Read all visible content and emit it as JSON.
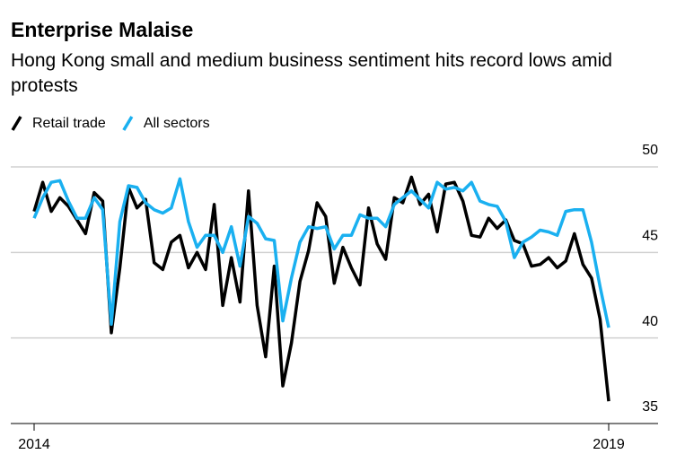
{
  "chart_data": {
    "type": "line",
    "title": "Enterprise Malaise",
    "subtitle": "Hong Kong small and medium business sentiment hits record lows amid protests",
    "categories": [
      "2014",
      null,
      null,
      null,
      null,
      null,
      null,
      null,
      null,
      null,
      null,
      null,
      null,
      null,
      null,
      null,
      null,
      null,
      null,
      null,
      null,
      null,
      null,
      null,
      null,
      null,
      null,
      null,
      null,
      null,
      null,
      null,
      null,
      null,
      null,
      null,
      null,
      null,
      null,
      null,
      null,
      null,
      null,
      null,
      null,
      null,
      null,
      null,
      null,
      null,
      null,
      null,
      null,
      null,
      null,
      null,
      null,
      null,
      null,
      null,
      null,
      null,
      null,
      null,
      null,
      null,
      null,
      "2019"
    ],
    "series": [
      {
        "name": "Retail trade",
        "color": "#000000",
        "values": [
          47.4,
          49.1,
          47.4,
          48.2,
          47.7,
          46.9,
          46.1,
          48.5,
          48.0,
          40.3,
          44.1,
          48.8,
          47.6,
          48.1,
          44.4,
          44.0,
          45.6,
          46.0,
          44.1,
          45.0,
          44.0,
          47.8,
          41.9,
          44.7,
          42.1,
          48.6,
          41.9,
          38.9,
          44.2,
          37.2,
          39.7,
          43.3,
          45.1,
          47.9,
          47.1,
          43.2,
          45.3,
          44.1,
          43.1,
          47.6,
          45.5,
          44.6,
          48.2,
          47.9,
          49.4,
          47.8,
          48.4,
          46.2,
          49.0,
          49.1,
          48.0,
          46.0,
          45.9,
          47.0,
          46.4,
          46.9,
          45.7,
          45.5,
          44.2,
          44.3,
          44.7,
          44.1,
          44.5,
          46.1,
          44.3,
          43.5,
          41.1,
          36.3
        ]
      },
      {
        "name": "All sectors",
        "color": "#1ab0f0",
        "values": [
          47.0,
          48.2,
          49.1,
          49.2,
          48.0,
          47.0,
          47.0,
          48.2,
          47.5,
          40.8,
          46.8,
          48.9,
          48.8,
          47.9,
          47.5,
          47.3,
          47.6,
          49.3,
          46.8,
          45.3,
          46.0,
          46.0,
          45.0,
          46.5,
          44.2,
          47.1,
          46.7,
          45.8,
          45.7,
          41.0,
          43.5,
          45.6,
          46.5,
          46.4,
          46.5,
          45.2,
          46.0,
          46.0,
          47.2,
          47.0,
          47.0,
          46.5,
          47.8,
          48.2,
          48.6,
          48.1,
          47.6,
          49.1,
          48.7,
          48.8,
          48.6,
          49.1,
          48.0,
          47.8,
          47.7,
          46.8,
          44.7,
          45.6,
          45.9,
          46.3,
          46.2,
          46.0,
          47.4,
          47.5,
          47.5,
          45.6,
          43.0,
          40.6
        ]
      }
    ],
    "ylim": [
      35,
      50
    ],
    "yticks": [
      35,
      40,
      45,
      50
    ],
    "grid": true
  }
}
